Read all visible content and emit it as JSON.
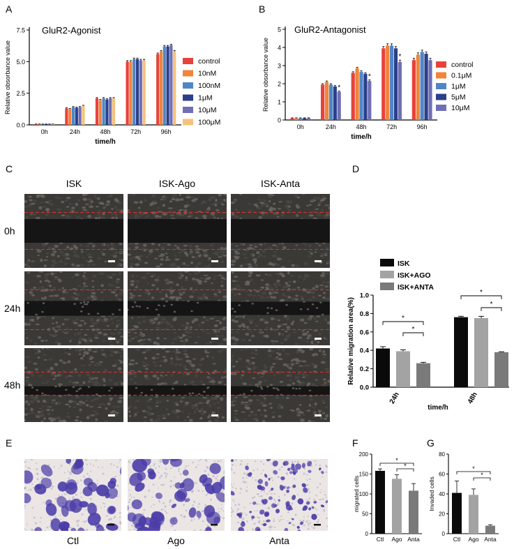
{
  "panel_labels": [
    "A",
    "B",
    "C",
    "D",
    "E",
    "F",
    "G"
  ],
  "micro_c": {
    "columns": [
      "ISK",
      "ISK-Ago",
      "ISK-Anta"
    ],
    "rows": [
      "0h",
      "24h",
      "48h"
    ],
    "gap_fraction": [
      [
        0.32,
        0.32,
        0.32
      ],
      [
        0.2,
        0.2,
        0.18
      ],
      [
        0.12,
        0.14,
        0.12
      ]
    ]
  },
  "micro_e": {
    "labels": [
      "Ctl",
      "Ago",
      "Anta"
    ],
    "density": [
      0.55,
      0.55,
      0.35
    ]
  },
  "colors": {
    "A": [
      "#e8423a",
      "#f0843a",
      "#4f86c6",
      "#2c3f8a",
      "#6f6fb6",
      "#f6c27a"
    ],
    "B": [
      "#e8423a",
      "#f0843a",
      "#4f86c6",
      "#2c3f8a",
      "#6f6fb6"
    ],
    "D": [
      "#0a0a0a",
      "#a3a3a3",
      "#7a7a7a"
    ],
    "gap": "#151515",
    "wound_line": "#e03030",
    "cell": "#56524e",
    "stain_bg": "#ebe6e4",
    "stain": "#4b3ca8"
  },
  "chart_data": [
    {
      "id": "A",
      "type": "bar",
      "title": "GluR2-Agonist",
      "xlabel": "time/h",
      "ylabel": "Relative obsorbance value",
      "categories": [
        "0h",
        "24h",
        "48h",
        "72h",
        "96h"
      ],
      "yticks": [
        "0.0",
        "2.5",
        "5.0",
        "7.5"
      ],
      "ylim": [
        0,
        7.5
      ],
      "series": [
        {
          "name": "control",
          "values": [
            0.05,
            1.3,
            2.1,
            5.0,
            5.6
          ],
          "err": [
            0.02,
            0.05,
            0.06,
            0.08,
            0.08
          ],
          "sig": [
            false,
            false,
            false,
            false,
            false
          ]
        },
        {
          "name": "10nM",
          "values": [
            0.05,
            1.25,
            1.95,
            5.0,
            5.8
          ],
          "err": [
            0.02,
            0.05,
            0.06,
            0.08,
            0.08
          ],
          "sig": [
            false,
            false,
            false,
            false,
            false
          ]
        },
        {
          "name": "100nM",
          "values": [
            0.05,
            1.4,
            2.1,
            5.2,
            6.2
          ],
          "err": [
            0.02,
            0.05,
            0.06,
            0.08,
            0.08
          ],
          "sig": [
            false,
            false,
            false,
            false,
            false
          ]
        },
        {
          "name": "1μM",
          "values": [
            0.05,
            1.35,
            2.0,
            5.2,
            6.2
          ],
          "err": [
            0.02,
            0.05,
            0.06,
            0.08,
            0.08
          ],
          "sig": [
            false,
            false,
            false,
            false,
            false
          ]
        },
        {
          "name": "10μM",
          "values": [
            0.05,
            1.4,
            2.1,
            5.1,
            6.3
          ],
          "err": [
            0.02,
            0.05,
            0.06,
            0.08,
            0.08
          ],
          "sig": [
            false,
            false,
            false,
            false,
            false
          ]
        },
        {
          "name": "100μM",
          "values": [
            0.05,
            1.5,
            2.1,
            5.1,
            5.8
          ],
          "err": [
            0.02,
            0.05,
            0.06,
            0.08,
            0.08
          ],
          "sig": [
            false,
            false,
            false,
            false,
            false
          ]
        }
      ]
    },
    {
      "id": "B",
      "type": "bar",
      "title": "GluR2-Antagonist",
      "xlabel": "time/h",
      "ylabel": "Relative obsorbance value",
      "categories": [
        "0h",
        "24h",
        "48h",
        "72h",
        "96h"
      ],
      "yticks": [
        "0",
        "1",
        "2",
        "3",
        "4",
        "5"
      ],
      "ylim": [
        0,
        5
      ],
      "series": [
        {
          "name": "control",
          "values": [
            0.1,
            1.95,
            2.6,
            3.95,
            3.3
          ],
          "err": [
            0.02,
            0.05,
            0.06,
            0.1,
            0.1
          ],
          "sig": [
            false,
            false,
            false,
            false,
            false
          ]
        },
        {
          "name": "0.1μM",
          "values": [
            0.1,
            2.1,
            2.85,
            4.1,
            3.6
          ],
          "err": [
            0.02,
            0.05,
            0.06,
            0.1,
            0.1
          ],
          "sig": [
            false,
            false,
            false,
            false,
            false
          ]
        },
        {
          "name": "1μM",
          "values": [
            0.1,
            1.95,
            2.65,
            4.1,
            3.75
          ],
          "err": [
            0.02,
            0.05,
            0.06,
            0.1,
            0.1
          ],
          "sig": [
            false,
            false,
            false,
            false,
            false
          ]
        },
        {
          "name": "5μM",
          "values": [
            0.1,
            1.85,
            2.55,
            3.95,
            3.65
          ],
          "err": [
            0.02,
            0.05,
            0.06,
            0.1,
            0.1
          ],
          "sig": [
            false,
            false,
            false,
            false,
            false
          ]
        },
        {
          "name": "10μM",
          "values": [
            0.1,
            1.55,
            2.15,
            3.2,
            3.3
          ],
          "err": [
            0.02,
            0.05,
            0.06,
            0.1,
            0.1
          ],
          "sig": [
            false,
            true,
            true,
            true,
            false
          ]
        }
      ]
    },
    {
      "id": "D",
      "type": "bar",
      "xlabel": "time/h",
      "ylabel": "Relative migration area(%)",
      "categories": [
        "24h",
        "48h"
      ],
      "yticks": [
        "0.0",
        "0.2",
        "0.4",
        "0.6",
        "0.8",
        "1.0"
      ],
      "ylim": [
        0,
        1.0
      ],
      "series": [
        {
          "name": "ISK",
          "values": [
            0.42,
            0.76
          ],
          "err": [
            0.02,
            0.01
          ]
        },
        {
          "name": "ISK+AGO",
          "values": [
            0.39,
            0.75
          ],
          "err": [
            0.015,
            0.02
          ]
        },
        {
          "name": "ISK+ANTA",
          "values": [
            0.26,
            0.38
          ],
          "err": [
            0.01,
            0.005
          ]
        }
      ],
      "annotations": [
        "*",
        "*",
        "*",
        "*"
      ]
    },
    {
      "id": "F",
      "type": "bar",
      "ylabel": "migrated cells",
      "categories": [
        "Ctl",
        "Ago",
        "Anta"
      ],
      "yticks": [
        "0",
        "50",
        "100",
        "150",
        "200"
      ],
      "ylim": [
        0,
        200
      ],
      "values": [
        158,
        138,
        108
      ],
      "err": [
        5,
        10,
        18
      ],
      "annotations": [
        "*",
        "*"
      ]
    },
    {
      "id": "G",
      "type": "bar",
      "ylabel": "Invaded cells",
      "categories": [
        "Ctl",
        "Ago",
        "Anta"
      ],
      "yticks": [
        "0",
        "20",
        "40",
        "60",
        "80"
      ],
      "ylim": [
        0,
        80
      ],
      "values": [
        41,
        39,
        8
      ],
      "err": [
        12,
        6,
        1
      ],
      "annotations": [
        "*",
        "*"
      ]
    }
  ]
}
